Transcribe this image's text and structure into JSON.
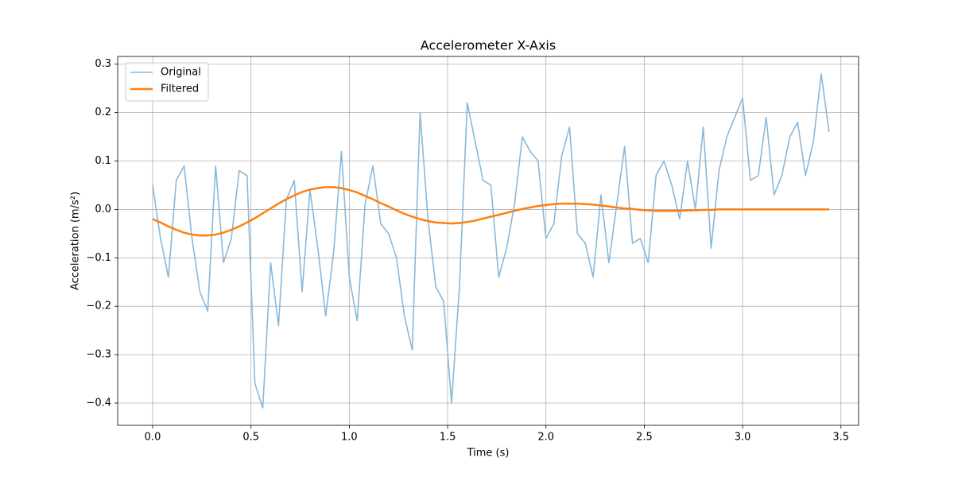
{
  "chart_data": {
    "type": "line",
    "title": "Accelerometer X-Axis",
    "x_label": "Time (s)",
    "y_label": "Acceleration (m/s²)",
    "x": [
      0,
      0.04,
      0.08,
      0.12,
      0.16,
      0.2,
      0.24,
      0.28,
      0.32,
      0.36,
      0.4,
      0.44,
      0.48,
      0.52,
      0.56,
      0.6,
      0.64,
      0.68,
      0.72,
      0.76,
      0.8,
      0.84,
      0.88,
      0.92,
      0.96,
      1.0,
      1.04,
      1.08,
      1.12,
      1.16,
      1.2,
      1.24,
      1.28,
      1.32,
      1.36,
      1.4,
      1.44,
      1.48,
      1.52,
      1.56,
      1.6,
      1.64,
      1.68,
      1.72,
      1.76,
      1.8,
      1.84,
      1.88,
      1.92,
      1.96,
      2.0,
      2.04,
      2.08,
      2.12,
      2.16,
      2.2,
      2.24,
      2.28,
      2.32,
      2.36,
      2.4,
      2.44,
      2.48,
      2.52,
      2.56,
      2.6,
      2.64,
      2.68,
      2.72,
      2.76,
      2.8,
      2.84,
      2.88,
      2.92,
      2.96,
      3.0,
      3.04,
      3.08,
      3.12,
      3.16,
      3.2,
      3.24,
      3.28,
      3.32,
      3.36,
      3.4,
      3.44
    ],
    "series": [
      {
        "name": "Original",
        "color": "#8ab8d9",
        "width": 1.6,
        "values": [
          0.05,
          -0.06,
          -0.14,
          0.06,
          0.09,
          -0.06,
          -0.17,
          -0.21,
          0.09,
          -0.11,
          -0.06,
          0.08,
          0.07,
          -0.36,
          -0.41,
          -0.11,
          -0.24,
          0.02,
          0.06,
          -0.17,
          0.04,
          -0.08,
          -0.22,
          -0.09,
          0.12,
          -0.14,
          -0.23,
          0.01,
          0.09,
          -0.03,
          -0.05,
          -0.1,
          -0.22,
          -0.29,
          0.2,
          -0.02,
          -0.16,
          -0.19,
          -0.4,
          -0.16,
          0.22,
          0.14,
          0.06,
          0.05,
          -0.14,
          -0.08,
          0.01,
          0.15,
          0.12,
          0.1,
          -0.06,
          -0.03,
          0.11,
          0.17,
          -0.05,
          -0.07,
          -0.14,
          0.03,
          -0.11,
          0.01,
          0.13,
          -0.07,
          -0.06,
          -0.11,
          0.07,
          0.1,
          0.05,
          -0.02,
          0.1,
          0.0,
          0.17,
          -0.08,
          0.08,
          0.15,
          0.19,
          0.23,
          0.06,
          0.07,
          0.19,
          0.03,
          0.07,
          0.15,
          0.18,
          0.07,
          0.14,
          0.28,
          0.16
        ]
      },
      {
        "name": "Filtered",
        "color": "#ff7f0e",
        "width": 2.5,
        "values": [
          -0.02,
          -0.027,
          -0.035,
          -0.042,
          -0.048,
          -0.052,
          -0.054,
          -0.054,
          -0.052,
          -0.048,
          -0.042,
          -0.035,
          -0.027,
          -0.018,
          -0.008,
          0.002,
          0.012,
          0.021,
          0.029,
          0.036,
          0.041,
          0.044,
          0.046,
          0.046,
          0.044,
          0.04,
          0.035,
          0.028,
          0.021,
          0.013,
          0.006,
          -0.002,
          -0.009,
          -0.015,
          -0.02,
          -0.024,
          -0.027,
          -0.028,
          -0.029,
          -0.028,
          -0.026,
          -0.023,
          -0.019,
          -0.015,
          -0.011,
          -0.007,
          -0.003,
          0.001,
          0.004,
          0.007,
          0.009,
          0.011,
          0.012,
          0.012,
          0.012,
          0.011,
          0.01,
          0.008,
          0.006,
          0.004,
          0.002,
          0.001,
          -0.001,
          -0.002,
          -0.003,
          -0.003,
          -0.003,
          -0.003,
          -0.002,
          -0.002,
          -0.001,
          -0.001,
          0,
          0,
          0,
          0,
          0,
          0,
          0,
          0,
          0,
          0,
          0,
          0,
          0,
          0,
          0
        ]
      }
    ],
    "xlim": [
      -0.178,
      3.59
    ],
    "ylim": [
      -0.446,
      0.316
    ],
    "xticks": [
      {
        "value": 0,
        "label": "0.0"
      },
      {
        "value": 0.5,
        "label": "0.5"
      },
      {
        "value": 1,
        "label": "1.0"
      },
      {
        "value": 1.5,
        "label": "1.5"
      },
      {
        "value": 2,
        "label": "2.0"
      },
      {
        "value": 2.5,
        "label": "2.5"
      },
      {
        "value": 3,
        "label": "3.0"
      },
      {
        "value": 3.5,
        "label": "3.5"
      }
    ],
    "yticks": [
      {
        "value": -0.4,
        "label": "−0.4"
      },
      {
        "value": -0.3,
        "label": "−0.3"
      },
      {
        "value": -0.2,
        "label": "−0.2"
      },
      {
        "value": -0.1,
        "label": "−0.1"
      },
      {
        "value": 0,
        "label": "0.0"
      },
      {
        "value": 0.1,
        "label": "0.1"
      },
      {
        "value": 0.2,
        "label": "0.2"
      },
      {
        "value": 0.3,
        "label": "0.3"
      }
    ],
    "grid": true,
    "legend": "upper left"
  }
}
